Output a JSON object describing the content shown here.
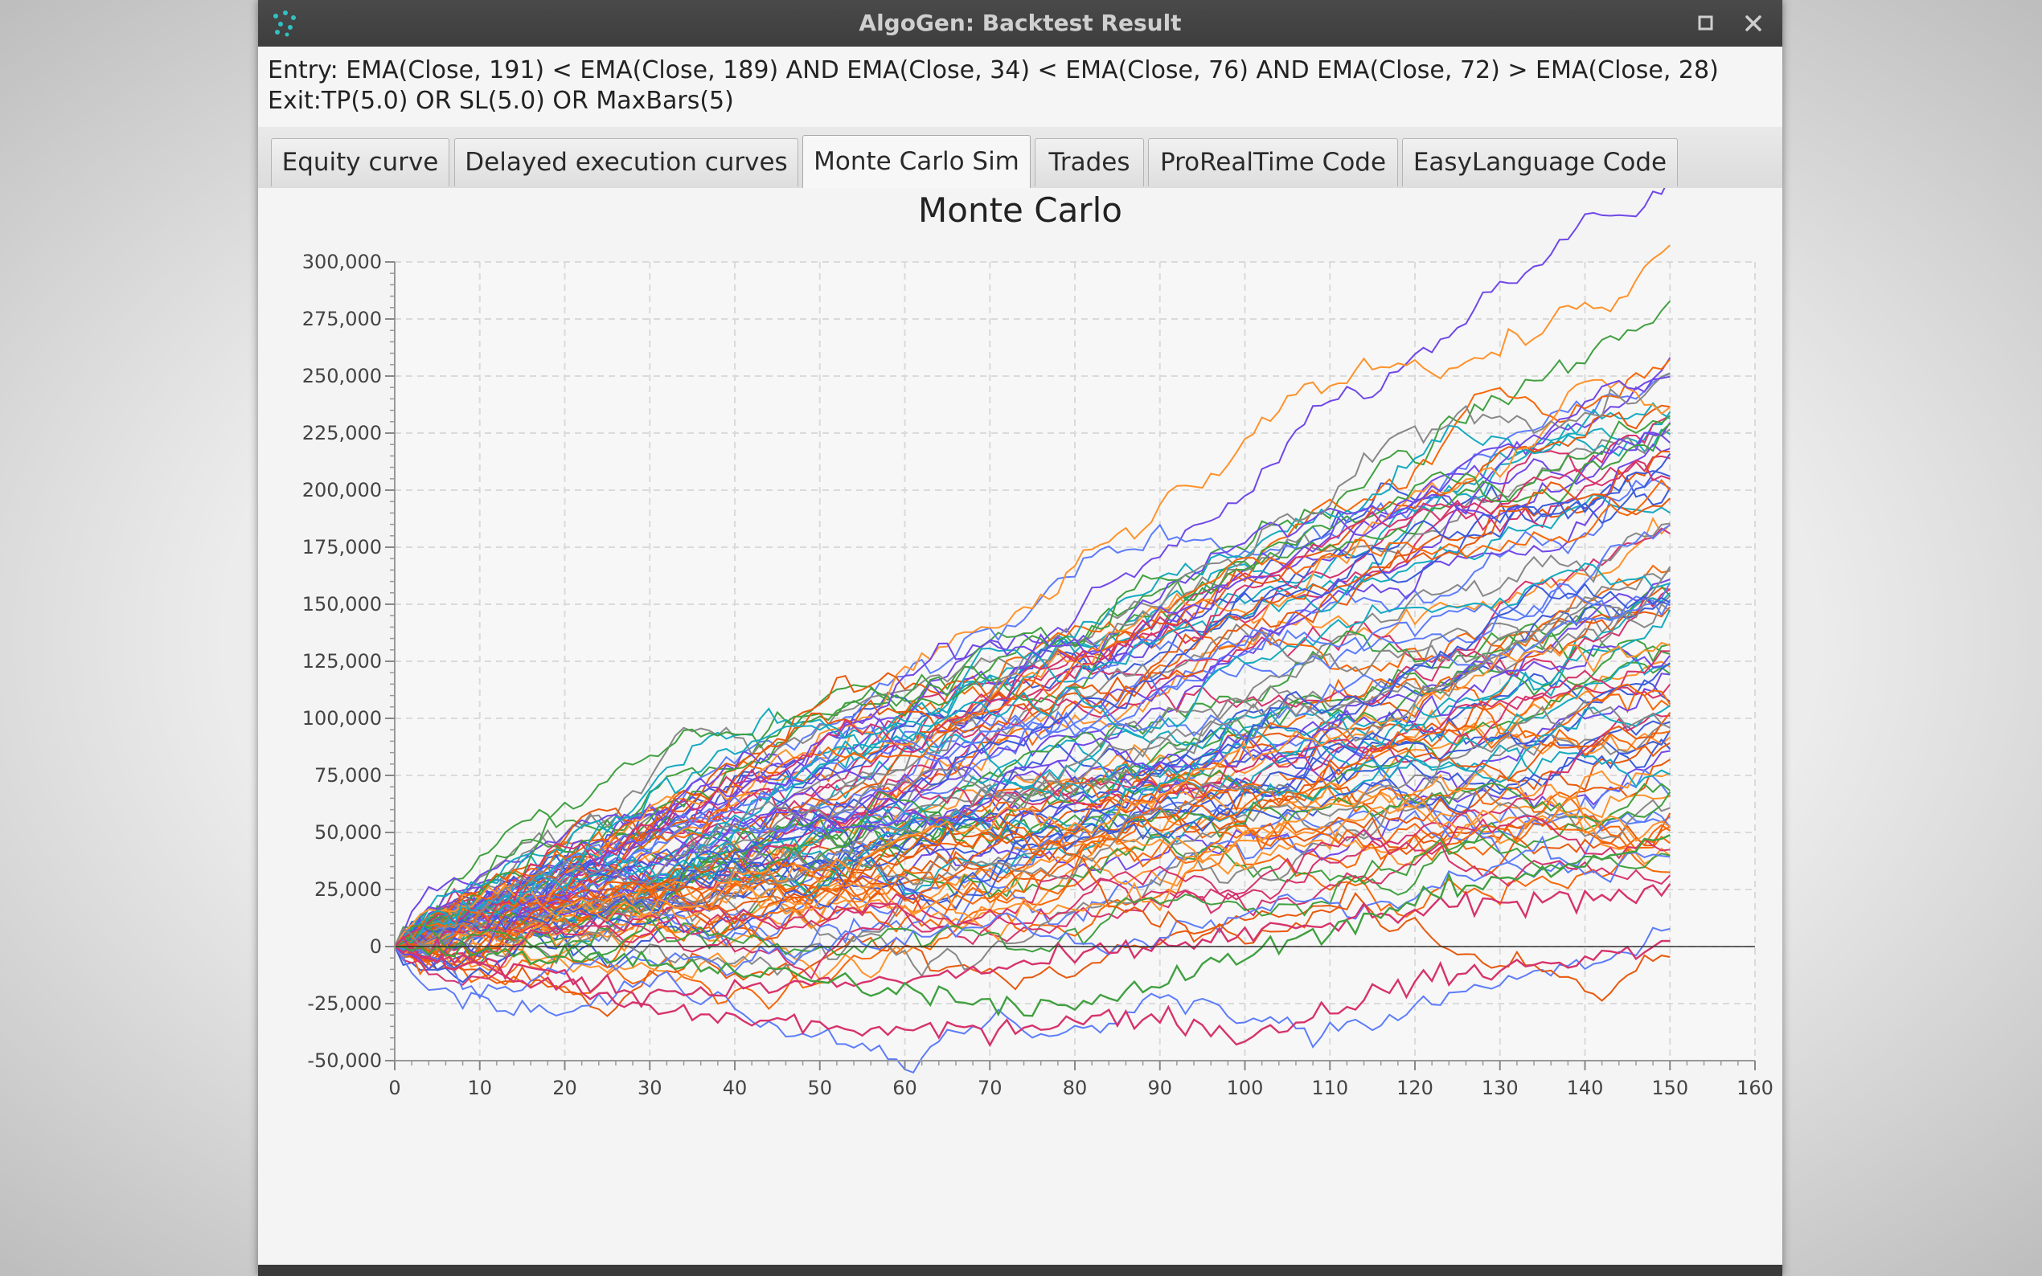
{
  "window": {
    "title": "AlgoGen: Backtest Result",
    "icons": {
      "app": "app-logo-icon",
      "maximize": "maximize-icon",
      "close": "close-icon"
    }
  },
  "rules": {
    "entry": "Entry: EMA(Close, 191) < EMA(Close, 189) AND EMA(Close, 34) < EMA(Close, 76) AND EMA(Close, 72) > EMA(Close, 28)",
    "exit": "Exit:TP(5.0) OR SL(5.0) OR MaxBars(5)"
  },
  "tabs": [
    {
      "label": "Equity curve"
    },
    {
      "label": "Delayed execution curves"
    },
    {
      "label": "Monte Carlo Sim"
    },
    {
      "label": "Trades"
    },
    {
      "label": "ProRealTime Code"
    },
    {
      "label": "EasyLanguage Code"
    }
  ],
  "active_tab": "Monte Carlo Sim",
  "chart_data": {
    "type": "line",
    "title": "Monte Carlo",
    "xlabel": "",
    "ylabel": "",
    "xlim": [
      0,
      160
    ],
    "ylim": [
      -50000,
      300000
    ],
    "x_ticks": [
      "0",
      "10",
      "20",
      "30",
      "40",
      "50",
      "60",
      "70",
      "80",
      "90",
      "100",
      "110",
      "120",
      "130",
      "140",
      "150",
      "160"
    ],
    "y_ticks": [
      "300,000",
      "275,000",
      "250,000",
      "225,000",
      "200,000",
      "175,000",
      "150,000",
      "125,000",
      "100,000",
      "75,000",
      "50,000",
      "25,000",
      "0",
      "-25,000",
      "-50,000"
    ],
    "grid": true,
    "legend": "none",
    "simulations": 100,
    "steps": 150,
    "start_value": 0,
    "series_colors": [
      "#3b5bdb",
      "#f76707",
      "#7048e8",
      "#40a040",
      "#ff922b",
      "#d6336c",
      "#15aabf",
      "#888888",
      "#5c7cfa",
      "#e8590c"
    ],
    "highlighted_series": [
      {
        "color": "#d6336c",
        "end": 26000,
        "values_at": {
          "x": [
            0,
            30,
            60,
            90,
            120,
            150
          ],
          "y": [
            0,
            -20000,
            -15000,
            0,
            15000,
            26000
          ]
        }
      },
      {
        "color": "#d6336c",
        "end": 0,
        "values_at": {
          "x": [
            0,
            30,
            60,
            90,
            100,
            120,
            150
          ],
          "y": [
            0,
            -28000,
            -38000,
            -30000,
            -40000,
            -15000,
            0
          ]
        }
      },
      {
        "color": "#40a040",
        "end": 47000,
        "values_at": {
          "x": [
            0,
            40,
            80,
            120,
            150
          ],
          "y": [
            0,
            -10000,
            -28000,
            20000,
            47000
          ]
        }
      }
    ],
    "final_value_range": [
      0,
      275000
    ]
  }
}
